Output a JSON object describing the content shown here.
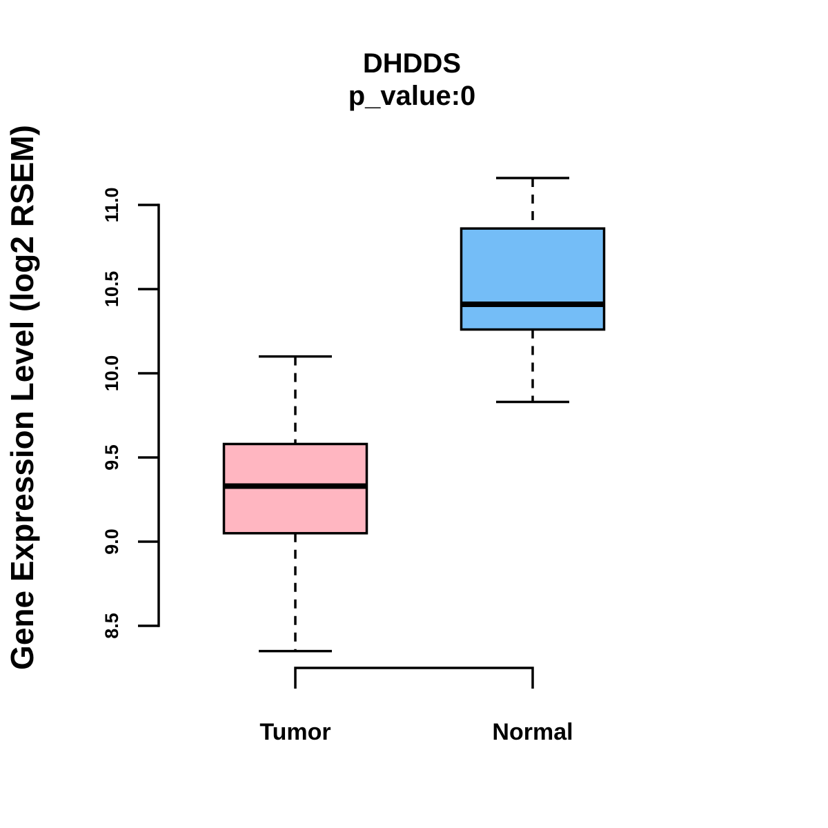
{
  "title": "DHDDS",
  "subtitle": "p_value:0",
  "ylabel": "Gene Expression Level (log2 RSEM)",
  "chart_data": {
    "type": "boxplot",
    "title": "DHDDS",
    "subtitle": "p_value:0",
    "ylabel": "Gene Expression Level (log2 RSEM)",
    "xlabel": "",
    "categories": [
      "Tumor",
      "Normal"
    ],
    "series": [
      {
        "name": "Tumor",
        "color": "#FFB6C1",
        "lower_whisker": 8.35,
        "q1": 9.05,
        "median": 9.33,
        "q3": 9.58,
        "upper_whisker": 10.1
      },
      {
        "name": "Normal",
        "color": "#74BDF7",
        "lower_whisker": 9.83,
        "q1": 10.26,
        "median": 10.41,
        "q3": 10.86,
        "upper_whisker": 11.16
      }
    ],
    "ytick_labels": [
      "8.5",
      "9.0",
      "9.5",
      "10.0",
      "10.5",
      "11.0"
    ],
    "ylim": [
      8.3,
      11.2
    ],
    "axis_tick_range": [
      8.5,
      11.0
    ],
    "grid": false,
    "legend": "none",
    "line_color": "#000000",
    "background_color": "#FFFFFF"
  }
}
